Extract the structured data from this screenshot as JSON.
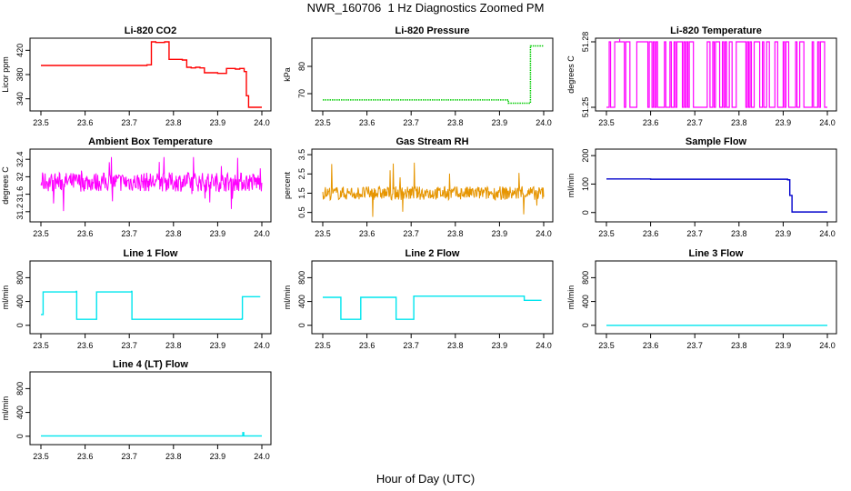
{
  "title": "NWR_160706  1 Hz Diagnostics Zoomed PM",
  "xlabel": "Hour of Day (UTC)",
  "chart_data": [
    {
      "type": "line",
      "title": "Li-820 CO2",
      "ylabel": "Licor ppm",
      "xlim": [
        23.5,
        24.0
      ],
      "xticks": [
        23.5,
        23.6,
        23.7,
        23.8,
        23.9,
        24.0
      ],
      "ylim": [
        326,
        434
      ],
      "yticks": [
        340,
        380,
        420
      ],
      "color": "#ff0000",
      "style": "step",
      "x": [
        23.5,
        23.74,
        23.75,
        23.76,
        23.77,
        23.78,
        23.79,
        23.8,
        23.81,
        23.82,
        23.83,
        23.84,
        23.85,
        23.86,
        23.87,
        23.88,
        23.89,
        23.9,
        23.91,
        23.92,
        23.93,
        23.94,
        23.95,
        23.96,
        23.965,
        23.97,
        24.0
      ],
      "y": [
        395,
        396,
        434,
        433,
        433,
        434,
        405,
        405,
        405,
        404,
        392,
        391,
        392,
        391,
        383,
        383,
        383,
        382,
        382,
        390,
        390,
        389,
        390,
        385,
        345,
        326,
        326
      ]
    },
    {
      "type": "line",
      "title": "Li-820 Pressure",
      "ylabel": "kPa",
      "xlim": [
        23.5,
        24.0
      ],
      "xticks": [
        23.5,
        23.6,
        23.7,
        23.8,
        23.9,
        24.0
      ],
      "ylim": [
        65,
        89
      ],
      "yticks": [
        70,
        80
      ],
      "color": "#00cc00",
      "style": "dotted",
      "x": [
        23.5,
        23.6,
        23.7,
        23.8,
        23.91,
        23.92,
        23.96,
        23.97,
        23.98,
        24.0
      ],
      "y": [
        67.7,
        67.7,
        67.7,
        67.7,
        67.7,
        66.5,
        66.5,
        87.5,
        87.5,
        87.5
      ]
    },
    {
      "type": "line",
      "title": "Li-820 Temperature",
      "ylabel": "degrees C",
      "xlim": [
        23.5,
        24.0
      ],
      "xticks": [
        23.5,
        23.6,
        23.7,
        23.8,
        23.9,
        24.0
      ],
      "ylim": [
        51.25,
        51.28
      ],
      "yticks": [
        51.25,
        51.28
      ],
      "color": "#ff00ff",
      "style": "toggle",
      "low": 51.25,
      "high": 51.28,
      "spike_x": 23.53,
      "spike_y": 51.295
    },
    {
      "type": "line",
      "title": "Ambient Box Temperature",
      "ylabel": "degrees C",
      "xlim": [
        23.5,
        24.0
      ],
      "xticks": [
        23.5,
        23.6,
        23.7,
        23.8,
        23.9,
        24.0
      ],
      "ylim": [
        31.05,
        32.55
      ],
      "yticks": [
        31.2,
        31.6,
        32.0,
        32.4
      ],
      "color": "#ff00ff",
      "style": "noise",
      "mean": 31.88,
      "spread": 0.22,
      "min": 31.1,
      "max": 32.45
    },
    {
      "type": "line",
      "title": "Gas Stream RH",
      "ylabel": "percent",
      "xlim": [
        23.5,
        24.0
      ],
      "xticks": [
        23.5,
        23.6,
        23.7,
        23.8,
        23.9,
        24.0
      ],
      "ylim": [
        0.2,
        3.6
      ],
      "yticks": [
        0.5,
        1.5,
        2.5,
        3.5
      ],
      "color": "#e69500",
      "style": "noise",
      "mean": 1.5,
      "spread": 0.35,
      "min": 0.25,
      "max": 3.55
    },
    {
      "type": "line",
      "title": "Sample Flow",
      "ylabel": "ml/min",
      "xlim": [
        23.5,
        24.0
      ],
      "xticks": [
        23.5,
        23.6,
        23.7,
        23.8,
        23.9,
        24.0
      ],
      "ylim": [
        -20,
        210
      ],
      "yticks": [
        0,
        100,
        200
      ],
      "color": "#0000cc",
      "style": "step",
      "x": [
        23.5,
        23.6,
        23.7,
        23.8,
        23.91,
        23.915,
        23.92,
        24.0
      ],
      "y": [
        118,
        117,
        117,
        117,
        115,
        60,
        2,
        2
      ]
    },
    {
      "type": "line",
      "title": "Line 1 Flow",
      "ylabel": "ml/min",
      "xlim": [
        23.5,
        24.0
      ],
      "xticks": [
        23.5,
        23.6,
        23.7,
        23.8,
        23.9,
        24.0
      ],
      "ylim": [
        -80,
        1020
      ],
      "yticks": [
        0,
        400,
        800
      ],
      "color": "#00e5ee",
      "style": "step",
      "x": [
        23.5,
        23.505,
        23.58,
        23.581,
        23.625,
        23.626,
        23.705,
        23.706,
        23.955,
        23.956,
        23.995
      ],
      "y": [
        180,
        560,
        570,
        100,
        100,
        560,
        570,
        100,
        110,
        480,
        490
      ]
    },
    {
      "type": "line",
      "title": "Line 2 Flow",
      "ylabel": "ml/min",
      "xlim": [
        23.5,
        24.0
      ],
      "xticks": [
        23.5,
        23.6,
        23.7,
        23.8,
        23.9,
        24.0
      ],
      "ylim": [
        -80,
        1020
      ],
      "yticks": [
        0,
        400,
        800
      ],
      "color": "#00e5ee",
      "style": "step",
      "x": [
        23.5,
        23.54,
        23.541,
        23.585,
        23.586,
        23.665,
        23.666,
        23.705,
        23.706,
        23.955,
        23.956,
        23.995
      ],
      "y": [
        470,
        470,
        100,
        100,
        470,
        470,
        100,
        100,
        490,
        490,
        420,
        420
      ]
    },
    {
      "type": "line",
      "title": "Line 3 Flow",
      "ylabel": "ml/min",
      "xlim": [
        23.5,
        24.0
      ],
      "xticks": [
        23.5,
        23.6,
        23.7,
        23.8,
        23.9,
        24.0
      ],
      "ylim": [
        -80,
        1020
      ],
      "yticks": [
        0,
        400,
        800
      ],
      "color": "#00e5ee",
      "style": "step",
      "x": [
        23.5,
        24.0
      ],
      "y": [
        0,
        0
      ]
    },
    {
      "type": "line",
      "title": "Line 4 (LT) Flow",
      "ylabel": "ml/min",
      "xlim": [
        23.5,
        24.0
      ],
      "xticks": [
        23.5,
        23.6,
        23.7,
        23.8,
        23.9,
        24.0
      ],
      "ylim": [
        -80,
        1020
      ],
      "yticks": [
        0,
        400,
        800
      ],
      "color": "#00e5ee",
      "style": "step",
      "x": [
        23.5,
        23.955,
        23.957,
        23.959,
        24.0
      ],
      "y": [
        5,
        5,
        60,
        5,
        5
      ]
    }
  ]
}
